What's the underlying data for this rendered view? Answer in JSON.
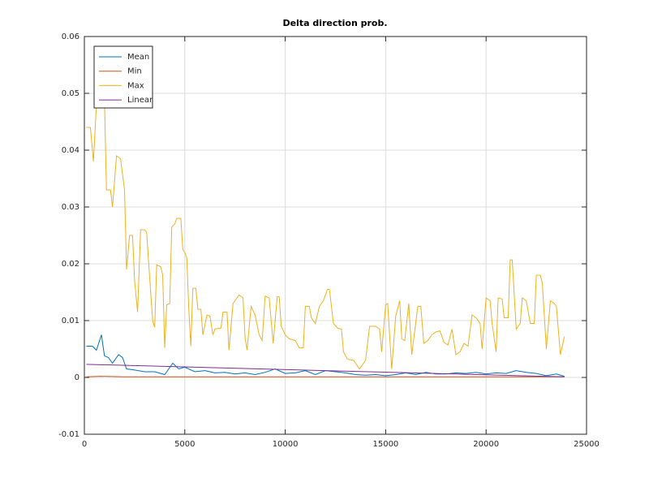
{
  "chart_data": {
    "type": "line",
    "title": "Delta direction prob.",
    "xlim": [
      0,
      25000
    ],
    "xticks": [
      0,
      5000,
      10000,
      15000,
      20000,
      25000
    ],
    "ylim": [
      -0.01,
      0.06
    ],
    "yticks": [
      -0.01,
      0,
      0.01,
      0.02,
      0.03,
      0.04,
      0.05,
      0.06
    ],
    "grid": true,
    "legend": "top-left",
    "series": [
      {
        "name": "Mean",
        "color": "#0072bd",
        "x": [
          100,
          400,
          600,
          850,
          1000,
          1200,
          1400,
          1700,
          1900,
          2100,
          2500,
          3000,
          3500,
          4000,
          4400,
          4700,
          5000,
          5500,
          6000,
          6500,
          7000,
          7500,
          8000,
          8500,
          9000,
          9500,
          10000,
          10500,
          11000,
          11500,
          12000,
          12500,
          13000,
          13500,
          14000,
          14500,
          15000,
          15500,
          16000,
          16500,
          17000,
          17500,
          18000,
          18500,
          19000,
          19500,
          20000,
          20500,
          21000,
          21500,
          22000,
          22500,
          23000,
          23500,
          23900
        ],
        "values": [
          0.0055,
          0.0055,
          0.0048,
          0.0075,
          0.0038,
          0.0035,
          0.0025,
          0.004,
          0.0035,
          0.0015,
          0.0013,
          0.001,
          0.001,
          0.0005,
          0.0025,
          0.0015,
          0.0018,
          0.001,
          0.0012,
          0.0008,
          0.0009,
          0.0006,
          0.0008,
          0.0005,
          0.0009,
          0.0015,
          0.0007,
          0.0008,
          0.0012,
          0.0005,
          0.0012,
          0.001,
          0.0008,
          0.0005,
          0.0004,
          0.0005,
          0.0003,
          0.0005,
          0.0008,
          0.0005,
          0.0009,
          0.0006,
          0.0006,
          0.0008,
          0.0007,
          0.0009,
          0.0006,
          0.0008,
          0.0007,
          0.0012,
          0.0009,
          0.0007,
          0.0003,
          0.0006,
          0.0002
        ]
      },
      {
        "name": "Min",
        "color": "#d95319",
        "x": [
          100,
          800,
          2000,
          6000,
          12000,
          18000,
          23900
        ],
        "values": [
          0.0001,
          0.0002,
          0.0001,
          0.0001,
          0.0001,
          0.0001,
          0.0001
        ]
      },
      {
        "name": "Max",
        "color": "#edb120",
        "x": [
          100,
          300,
          450,
          600,
          800,
          1000,
          1100,
          1300,
          1400,
          1600,
          1800,
          2000,
          2100,
          2250,
          2400,
          2500,
          2650,
          2800,
          3000,
          3100,
          3300,
          3400,
          3500,
          3600,
          3800,
          3900,
          4000,
          4100,
          4250,
          4350,
          4500,
          4600,
          4800,
          4900,
          5000,
          5100,
          5200,
          5300,
          5400,
          5550,
          5650,
          5800,
          5900,
          6100,
          6250,
          6400,
          6500,
          6800,
          6900,
          7100,
          7200,
          7400,
          7500,
          7700,
          7900,
          8000,
          8100,
          8300,
          8500,
          8700,
          8850,
          9000,
          9200,
          9400,
          9600,
          9700,
          9800,
          10000,
          10200,
          10500,
          10700,
          10900,
          11000,
          11200,
          11300,
          11500,
          11700,
          11900,
          12100,
          12200,
          12400,
          12600,
          12800,
          12900,
          13100,
          13400,
          13700,
          14000,
          14200,
          14500,
          14700,
          14800,
          15000,
          15100,
          15300,
          15500,
          15700,
          15800,
          15950,
          16150,
          16300,
          16600,
          16750,
          16900,
          17100,
          17300,
          17500,
          17700,
          17900,
          18100,
          18300,
          18500,
          18700,
          18900,
          19100,
          19300,
          19500,
          19700,
          19800,
          20000,
          20200,
          20300,
          20500,
          20600,
          20800,
          20900,
          21100,
          21200,
          21300,
          21500,
          21700,
          21800,
          22000,
          22200,
          22400,
          22500,
          22700,
          22800,
          23000,
          23200,
          23400,
          23500,
          23700,
          23900
        ],
        "values": [
          0.044,
          0.044,
          0.038,
          0.048,
          0.049,
          0.049,
          0.033,
          0.033,
          0.03,
          0.039,
          0.0385,
          0.033,
          0.019,
          0.025,
          0.025,
          0.017,
          0.0115,
          0.026,
          0.026,
          0.0255,
          0.015,
          0.01,
          0.0088,
          0.0198,
          0.0195,
          0.018,
          0.0052,
          0.0128,
          0.013,
          0.0265,
          0.027,
          0.028,
          0.028,
          0.0225,
          0.022,
          0.021,
          0.012,
          0.0055,
          0.0157,
          0.0157,
          0.012,
          0.012,
          0.0075,
          0.011,
          0.0108,
          0.0075,
          0.0085,
          0.0087,
          0.0115,
          0.0115,
          0.0048,
          0.013,
          0.0135,
          0.0145,
          0.014,
          0.007,
          0.0048,
          0.0125,
          0.011,
          0.0075,
          0.0065,
          0.0143,
          0.014,
          0.006,
          0.0142,
          0.0142,
          0.009,
          0.0075,
          0.0068,
          0.0065,
          0.0052,
          0.0052,
          0.0125,
          0.0125,
          0.0105,
          0.0095,
          0.0125,
          0.0135,
          0.0155,
          0.0155,
          0.0095,
          0.0087,
          0.0085,
          0.0045,
          0.0032,
          0.003,
          0.0015,
          0.003,
          0.009,
          0.009,
          0.0085,
          0.0045,
          0.0128,
          0.013,
          0.0015,
          0.0108,
          0.0135,
          0.0068,
          0.0065,
          0.013,
          0.004,
          0.0125,
          0.0125,
          0.006,
          0.0065,
          0.0075,
          0.008,
          0.0082,
          0.0062,
          0.0057,
          0.0085,
          0.004,
          0.0045,
          0.006,
          0.0055,
          0.011,
          0.0105,
          0.0095,
          0.005,
          0.014,
          0.0135,
          0.0095,
          0.0045,
          0.014,
          0.0138,
          0.0105,
          0.0105,
          0.0207,
          0.0207,
          0.0085,
          0.0095,
          0.014,
          0.0135,
          0.0095,
          0.0095,
          0.018,
          0.018,
          0.0165,
          0.005,
          0.0135,
          0.013,
          0.0125,
          0.004,
          0.0072
        ]
      },
      {
        "name": "Linear",
        "color": "#7e2f8e",
        "x": [
          100,
          23900
        ],
        "values": [
          0.0023,
          0.0001
        ]
      }
    ]
  }
}
